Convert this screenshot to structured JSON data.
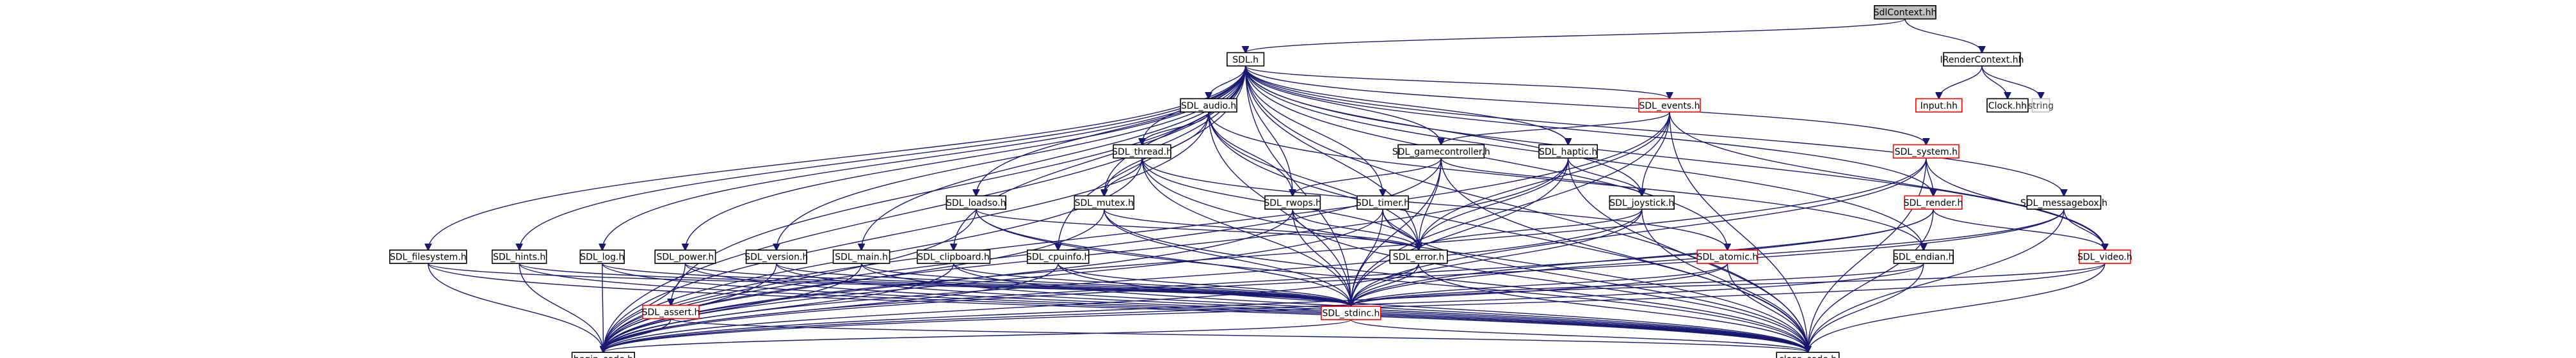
{
  "diagram": {
    "title": "",
    "colors": {
      "edge": "#191970",
      "node_border": "#000000",
      "node_border_missing": "#ff0000",
      "node_border_external": "#bfbfbf",
      "root_fill": "#bfbfbf",
      "node_fill": "#ffffff",
      "text": "#000000",
      "text_external": "#404040"
    },
    "nodes": [
      {
        "id": "sdlcontext",
        "label": "SdlContext.hh",
        "style": "root"
      },
      {
        "id": "sdl",
        "label": "SDL.h",
        "style": "normal"
      },
      {
        "id": "irender",
        "label": "IRenderContext.hh",
        "style": "normal"
      },
      {
        "id": "audio",
        "label": "SDL_audio.h",
        "style": "normal"
      },
      {
        "id": "events",
        "label": "SDL_events.h",
        "style": "missing"
      },
      {
        "id": "input",
        "label": "Input.hh",
        "style": "missing"
      },
      {
        "id": "clock",
        "label": "Clock.hh",
        "style": "normal"
      },
      {
        "id": "string",
        "label": "string",
        "style": "external"
      },
      {
        "id": "thread",
        "label": "SDL_thread.h",
        "style": "normal"
      },
      {
        "id": "gamecontroller",
        "label": "SDL_gamecontroller.h",
        "style": "normal"
      },
      {
        "id": "haptic",
        "label": "SDL_haptic.h",
        "style": "normal"
      },
      {
        "id": "system",
        "label": "SDL_system.h",
        "style": "missing"
      },
      {
        "id": "loadso",
        "label": "SDL_loadso.h",
        "style": "normal"
      },
      {
        "id": "mutex",
        "label": "SDL_mutex.h",
        "style": "normal"
      },
      {
        "id": "rwops",
        "label": "SDL_rwops.h",
        "style": "normal"
      },
      {
        "id": "timer",
        "label": "SDL_timer.h",
        "style": "normal"
      },
      {
        "id": "joystick",
        "label": "SDL_joystick.h",
        "style": "normal"
      },
      {
        "id": "render",
        "label": "SDL_render.h",
        "style": "missing"
      },
      {
        "id": "messagebox",
        "label": "SDL_messagebox.h",
        "style": "normal"
      },
      {
        "id": "filesystem",
        "label": "SDL_filesystem.h",
        "style": "normal"
      },
      {
        "id": "hints",
        "label": "SDL_hints.h",
        "style": "normal"
      },
      {
        "id": "log",
        "label": "SDL_log.h",
        "style": "normal"
      },
      {
        "id": "power",
        "label": "SDL_power.h",
        "style": "normal"
      },
      {
        "id": "version",
        "label": "SDL_version.h",
        "style": "normal"
      },
      {
        "id": "main",
        "label": "SDL_main.h",
        "style": "normal"
      },
      {
        "id": "clipboard",
        "label": "SDL_clipboard.h",
        "style": "normal"
      },
      {
        "id": "cpuinfo",
        "label": "SDL_cpuinfo.h",
        "style": "normal"
      },
      {
        "id": "error",
        "label": "SDL_error.h",
        "style": "normal"
      },
      {
        "id": "atomic",
        "label": "SDL_atomic.h",
        "style": "missing"
      },
      {
        "id": "endian",
        "label": "SDL_endian.h",
        "style": "normal"
      },
      {
        "id": "video",
        "label": "SDL_video.h",
        "style": "missing"
      },
      {
        "id": "assert",
        "label": "SDL_assert.h",
        "style": "missing"
      },
      {
        "id": "stdinc",
        "label": "SDL_stdinc.h",
        "style": "missing"
      },
      {
        "id": "begin",
        "label": "begin_code.h",
        "style": "normal"
      },
      {
        "id": "close",
        "label": "close_code.h",
        "style": "normal"
      }
    ],
    "edges": [
      [
        "sdlcontext",
        "sdl"
      ],
      [
        "sdlcontext",
        "irender"
      ],
      [
        "irender",
        "input"
      ],
      [
        "irender",
        "clock"
      ],
      [
        "irender",
        "string"
      ],
      [
        "sdl",
        "audio"
      ],
      [
        "sdl",
        "events"
      ],
      [
        "sdl",
        "thread"
      ],
      [
        "sdl",
        "gamecontroller"
      ],
      [
        "sdl",
        "haptic"
      ],
      [
        "sdl",
        "system"
      ],
      [
        "sdl",
        "loadso"
      ],
      [
        "sdl",
        "mutex"
      ],
      [
        "sdl",
        "rwops"
      ],
      [
        "sdl",
        "timer"
      ],
      [
        "sdl",
        "joystick"
      ],
      [
        "sdl",
        "render"
      ],
      [
        "sdl",
        "messagebox"
      ],
      [
        "sdl",
        "filesystem"
      ],
      [
        "sdl",
        "hints"
      ],
      [
        "sdl",
        "log"
      ],
      [
        "sdl",
        "power"
      ],
      [
        "sdl",
        "version"
      ],
      [
        "sdl",
        "main"
      ],
      [
        "sdl",
        "clipboard"
      ],
      [
        "sdl",
        "cpuinfo"
      ],
      [
        "sdl",
        "error"
      ],
      [
        "sdl",
        "atomic"
      ],
      [
        "sdl",
        "endian"
      ],
      [
        "sdl",
        "video"
      ],
      [
        "sdl",
        "assert"
      ],
      [
        "sdl",
        "stdinc"
      ],
      [
        "sdl",
        "begin"
      ],
      [
        "sdl",
        "close"
      ],
      [
        "audio",
        "thread"
      ],
      [
        "audio",
        "mutex"
      ],
      [
        "audio",
        "rwops"
      ],
      [
        "audio",
        "error"
      ],
      [
        "audio",
        "endian"
      ],
      [
        "audio",
        "stdinc"
      ],
      [
        "audio",
        "begin"
      ],
      [
        "audio",
        "close"
      ],
      [
        "events",
        "gamecontroller"
      ],
      [
        "events",
        "joystick"
      ],
      [
        "events",
        "video"
      ],
      [
        "events",
        "error"
      ],
      [
        "events",
        "stdinc"
      ],
      [
        "events",
        "begin"
      ],
      [
        "events",
        "close"
      ],
      [
        "thread",
        "mutex"
      ],
      [
        "thread",
        "error"
      ],
      [
        "thread",
        "atomic"
      ],
      [
        "thread",
        "stdinc"
      ],
      [
        "thread",
        "begin"
      ],
      [
        "thread",
        "close"
      ],
      [
        "gamecontroller",
        "joystick"
      ],
      [
        "gamecontroller",
        "rwops"
      ],
      [
        "gamecontroller",
        "error"
      ],
      [
        "gamecontroller",
        "stdinc"
      ],
      [
        "gamecontroller",
        "begin"
      ],
      [
        "gamecontroller",
        "close"
      ],
      [
        "haptic",
        "joystick"
      ],
      [
        "haptic",
        "error"
      ],
      [
        "haptic",
        "stdinc"
      ],
      [
        "haptic",
        "begin"
      ],
      [
        "haptic",
        "close"
      ],
      [
        "system",
        "render"
      ],
      [
        "system",
        "video"
      ],
      [
        "system",
        "stdinc"
      ],
      [
        "system",
        "begin"
      ],
      [
        "system",
        "close"
      ],
      [
        "loadso",
        "error"
      ],
      [
        "loadso",
        "stdinc"
      ],
      [
        "loadso",
        "begin"
      ],
      [
        "loadso",
        "close"
      ],
      [
        "mutex",
        "error"
      ],
      [
        "mutex",
        "stdinc"
      ],
      [
        "mutex",
        "begin"
      ],
      [
        "mutex",
        "close"
      ],
      [
        "rwops",
        "error"
      ],
      [
        "rwops",
        "stdinc"
      ],
      [
        "rwops",
        "begin"
      ],
      [
        "rwops",
        "close"
      ],
      [
        "timer",
        "error"
      ],
      [
        "timer",
        "stdinc"
      ],
      [
        "timer",
        "begin"
      ],
      [
        "timer",
        "close"
      ],
      [
        "joystick",
        "error"
      ],
      [
        "joystick",
        "stdinc"
      ],
      [
        "joystick",
        "begin"
      ],
      [
        "joystick",
        "close"
      ],
      [
        "render",
        "video"
      ],
      [
        "render",
        "stdinc"
      ],
      [
        "render",
        "begin"
      ],
      [
        "render",
        "close"
      ],
      [
        "messagebox",
        "video"
      ],
      [
        "messagebox",
        "stdinc"
      ],
      [
        "messagebox",
        "begin"
      ],
      [
        "messagebox",
        "close"
      ],
      [
        "filesystem",
        "stdinc"
      ],
      [
        "filesystem",
        "begin"
      ],
      [
        "filesystem",
        "close"
      ],
      [
        "hints",
        "stdinc"
      ],
      [
        "hints",
        "begin"
      ],
      [
        "hints",
        "close"
      ],
      [
        "log",
        "stdinc"
      ],
      [
        "log",
        "begin"
      ],
      [
        "log",
        "close"
      ],
      [
        "power",
        "stdinc"
      ],
      [
        "power",
        "begin"
      ],
      [
        "power",
        "close"
      ],
      [
        "version",
        "stdinc"
      ],
      [
        "version",
        "begin"
      ],
      [
        "version",
        "close"
      ],
      [
        "main",
        "stdinc"
      ],
      [
        "main",
        "begin"
      ],
      [
        "main",
        "close"
      ],
      [
        "clipboard",
        "stdinc"
      ],
      [
        "clipboard",
        "begin"
      ],
      [
        "clipboard",
        "close"
      ],
      [
        "cpuinfo",
        "stdinc"
      ],
      [
        "cpuinfo",
        "begin"
      ],
      [
        "cpuinfo",
        "close"
      ],
      [
        "error",
        "stdinc"
      ],
      [
        "error",
        "begin"
      ],
      [
        "error",
        "close"
      ],
      [
        "atomic",
        "stdinc"
      ],
      [
        "atomic",
        "begin"
      ],
      [
        "atomic",
        "close"
      ],
      [
        "endian",
        "stdinc"
      ],
      [
        "endian",
        "begin"
      ],
      [
        "endian",
        "close"
      ],
      [
        "video",
        "stdinc"
      ],
      [
        "video",
        "begin"
      ],
      [
        "video",
        "close"
      ],
      [
        "assert",
        "begin"
      ],
      [
        "assert",
        "close"
      ],
      [
        "stdinc",
        "begin"
      ],
      [
        "stdinc",
        "close"
      ]
    ]
  }
}
